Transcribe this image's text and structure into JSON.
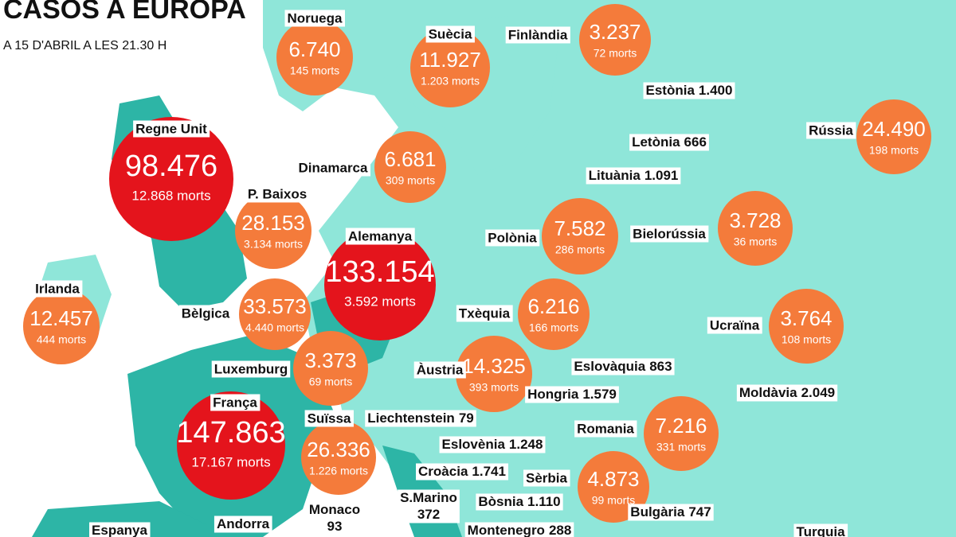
{
  "header": {
    "title": "CASOS A EUROPA",
    "subtitle": "A 15 D'ABRIL A LES 21.30 H"
  },
  "bubbles": [
    {
      "name": "Noruega",
      "cases": "6.740",
      "deaths": "145 morts",
      "color": "#f47b3b"
    },
    {
      "name": "Suècia",
      "cases": "11.927",
      "deaths": "1.203 morts",
      "color": "#f47b3b"
    },
    {
      "name": "Finlàndia",
      "cases": "3.237",
      "deaths": "72 morts",
      "color": "#f47b3b"
    },
    {
      "name": "Regne Unit",
      "cases": "98.476",
      "deaths": "12.868 morts",
      "color": "#e4141c"
    },
    {
      "name": "Dinamarca",
      "cases": "6.681",
      "deaths": "309 morts",
      "color": "#f47b3b"
    },
    {
      "name": "P. Baixos",
      "cases": "28.153",
      "deaths": "3.134 morts",
      "color": "#f47b3b"
    },
    {
      "name": "Alemanya",
      "cases": "133.154",
      "deaths": "3.592 morts",
      "color": "#e4141c"
    },
    {
      "name": "Polònia",
      "cases": "7.582",
      "deaths": "286 morts",
      "color": "#f47b3b"
    },
    {
      "name": "Rússia",
      "cases": "24.490",
      "deaths": "198 morts",
      "color": "#f47b3b"
    },
    {
      "name": "Bielorússia",
      "cases": "3.728",
      "deaths": "36 morts",
      "color": "#f47b3b"
    },
    {
      "name": "Irlanda",
      "cases": "12.457",
      "deaths": "444 morts",
      "color": "#f47b3b"
    },
    {
      "name": "Bèlgica",
      "cases": "33.573",
      "deaths": "4.440 morts",
      "color": "#f47b3b"
    },
    {
      "name": "Txèquia",
      "cases": "6.216",
      "deaths": "166 morts",
      "color": "#f47b3b"
    },
    {
      "name": "Ucraïna",
      "cases": "3.764",
      "deaths": "108 morts",
      "color": "#f47b3b"
    },
    {
      "name": "Luxemburg",
      "cases": "3.373",
      "deaths": "69 morts",
      "color": "#f47b3b"
    },
    {
      "name": "Àustria",
      "cases": "14.325",
      "deaths": "393 morts",
      "color": "#f47b3b"
    },
    {
      "name": "França",
      "cases": "147.863",
      "deaths": "17.167 morts",
      "color": "#e4141c"
    },
    {
      "name": "Suïssa",
      "cases": "26.336",
      "deaths": "1.226 morts",
      "color": "#f47b3b"
    },
    {
      "name": "Romania",
      "cases": "7.216",
      "deaths": "331 morts",
      "color": "#f47b3b"
    },
    {
      "name": "Sèrbia",
      "cases": "4.873",
      "deaths": "99 morts",
      "color": "#f47b3b"
    }
  ],
  "labels": [
    {
      "name": "Estònia",
      "cases": "1.400"
    },
    {
      "name": "Letònia",
      "cases": "666"
    },
    {
      "name": "Lituània",
      "cases": "1.091"
    },
    {
      "name": "Eslovàquia",
      "cases": "863"
    },
    {
      "name": "Hongria",
      "cases": "1.579"
    },
    {
      "name": "Moldàvia",
      "cases": "2.049"
    },
    {
      "name": "Liechtenstein",
      "cases": "79"
    },
    {
      "name": "Eslovènia",
      "cases": "1.248"
    },
    {
      "name": "Croàcia",
      "cases": "1.741"
    },
    {
      "name": "S.Marino",
      "cases": "372"
    },
    {
      "name": "Bòsnia",
      "cases": "1.110"
    },
    {
      "name": "Bulgària",
      "cases": "747"
    },
    {
      "name": "Monaco",
      "cases": "93"
    },
    {
      "name": "Andorra"
    },
    {
      "name": "Montenegro",
      "cases": "288"
    },
    {
      "name": "Espanya"
    },
    {
      "name": "Turquia"
    }
  ]
}
